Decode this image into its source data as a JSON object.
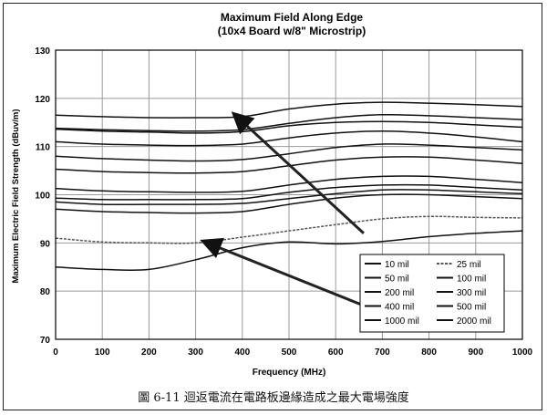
{
  "chart_data": {
    "type": "line",
    "title": "Maximum Field Along Edge",
    "subtitle": "(10x4 Board w/8\" Microstrip)",
    "xlabel": "Frequency (MHz)",
    "ylabel": "Maximum Electric Field Strength (dBuv/m)",
    "xlim": [
      0,
      1000
    ],
    "ylim": [
      70,
      130
    ],
    "xticks": [
      "0",
      "100",
      "200",
      "300",
      "400",
      "500",
      "600",
      "700",
      "800",
      "900",
      "1000"
    ],
    "yticks": [
      "70",
      "80",
      "90",
      "100",
      "110",
      "120",
      "130"
    ],
    "grid": true,
    "legend_position": "bottom-right",
    "x": [
      0,
      100,
      200,
      300,
      400,
      500,
      600,
      700,
      800,
      900,
      1000
    ],
    "series": [
      {
        "name": "10 mil",
        "values": [
          85.0,
          84.5,
          84.5,
          86.5,
          89.0,
          90.2,
          89.8,
          90.3,
          91.3,
          92.0,
          92.5
        ]
      },
      {
        "name": "25 mil",
        "values": [
          91.0,
          90.2,
          90.0,
          90.0,
          91.2,
          92.5,
          93.8,
          95.0,
          95.5,
          95.3,
          95.2
        ]
      },
      {
        "name": "50 mil",
        "values": [
          97.0,
          96.5,
          96.3,
          96.2,
          96.5,
          98.0,
          99.3,
          100.0,
          100.0,
          99.6,
          99.2
        ]
      },
      {
        "name": "100 mil",
        "values": [
          98.5,
          98.0,
          98.0,
          98.0,
          98.2,
          99.2,
          100.2,
          101.0,
          101.0,
          100.6,
          100.2
        ]
      },
      {
        "name": "200 mil",
        "values": [
          99.3,
          99.0,
          99.0,
          99.0,
          99.2,
          100.5,
          101.5,
          102.0,
          102.0,
          101.5,
          101.0
        ]
      },
      {
        "name": "300 mil",
        "values": [
          101.3,
          100.8,
          100.6,
          100.5,
          100.7,
          102.0,
          103.2,
          103.8,
          103.8,
          103.2,
          102.5
        ]
      },
      {
        "name": "400 mil",
        "values": [
          105.3,
          104.8,
          104.6,
          104.5,
          104.8,
          106.0,
          107.2,
          107.8,
          107.8,
          107.2,
          106.5
        ]
      },
      {
        "name": "500 mil",
        "values": [
          108.0,
          107.5,
          107.2,
          107.0,
          107.3,
          108.5,
          109.8,
          110.5,
          110.3,
          109.8,
          109.3
        ]
      },
      {
        "name": "1000 mil",
        "values": [
          111.0,
          110.5,
          110.3,
          110.2,
          110.5,
          111.8,
          112.8,
          113.2,
          112.8,
          112.0,
          111.0
        ]
      },
      {
        "name": "2000 mil",
        "values": [
          113.6,
          113.2,
          113.0,
          112.8,
          113.1,
          114.3,
          115.0,
          115.2,
          115.0,
          114.5,
          114.0
        ]
      },
      {
        "name": "",
        "values": [
          116.5,
          116.2,
          116.0,
          116.0,
          116.2,
          117.8,
          118.8,
          119.2,
          119.0,
          118.7,
          118.3
        ]
      },
      {
        "name": "",
        "values": [
          113.8,
          113.5,
          113.3,
          113.2,
          113.5,
          114.8,
          116.0,
          116.6,
          116.4,
          116.0,
          115.6
        ]
      }
    ],
    "legend_order": [
      "10 mil",
      "25 mil",
      "50 mil",
      "100 mil",
      "200 mil",
      "300 mil",
      "400 mil",
      "500 mil",
      "1000 mil",
      "2000 mil"
    ],
    "annotations": [
      {
        "type": "arrow",
        "from": [
          660,
          92
        ],
        "to": [
          385,
          116.5
        ]
      },
      {
        "type": "arrow",
        "from": [
          660,
          77
        ],
        "to": [
          320,
          90.2
        ]
      }
    ],
    "colors": {
      "line": "#111111",
      "grid": "#9a9a9a",
      "axis": "#000000"
    }
  },
  "caption": "圖 6-11  迴返電流在電路板邊緣造成之最大電場強度"
}
